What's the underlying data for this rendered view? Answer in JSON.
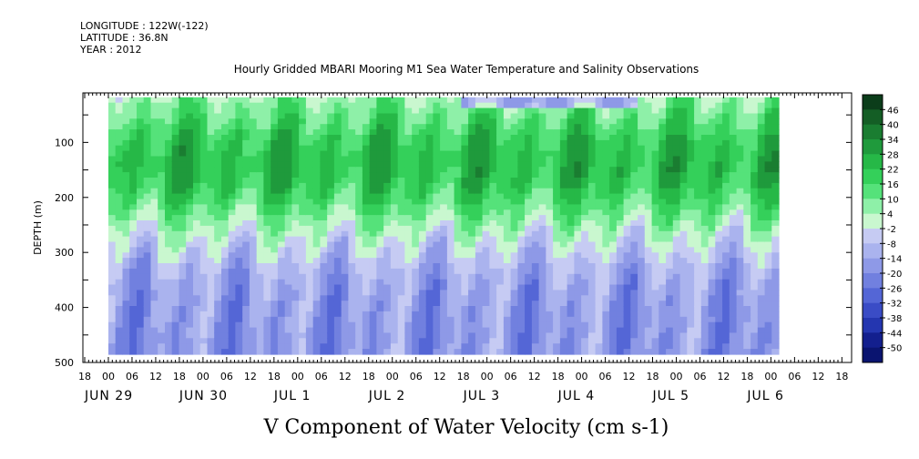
{
  "header": {
    "longitude_line": "LONGITUDE : 122W(-122)",
    "latitude_line": "LATITUDE : 36.8N",
    "year_line": "YEAR : 2012"
  },
  "chart_data": {
    "type": "heatmap",
    "title": "Hourly Gridded MBARI Mooring M1 Sea Water Temperature and Salinity Observations",
    "variable": "V Component of Water Velocity (cm s-1)",
    "ylabel": "DEPTH (m)",
    "y_axis": {
      "inverted": true,
      "ylim": [
        500,
        10
      ],
      "ticks": [
        100,
        200,
        300,
        400,
        500
      ]
    },
    "x_axis": {
      "start": "JUN 29 18:00",
      "end": "JUL 6 20:00",
      "hour_ticks": [
        "18",
        "00",
        "06",
        "12",
        "18",
        "00",
        "06",
        "12",
        "18",
        "00",
        "06",
        "12",
        "18",
        "00",
        "06",
        "12",
        "18",
        "00",
        "06",
        "12",
        "18",
        "00",
        "06",
        "12",
        "18",
        "00",
        "06",
        "12",
        "18",
        "00",
        "06",
        "12",
        "18"
      ],
      "date_labels": [
        "JUN 29",
        "JUN 30",
        "JUL 1",
        "JUL 2",
        "JUL 3",
        "JUL 4",
        "JUL 5",
        "JUL 6"
      ]
    },
    "data_depth_range": [
      18,
      485
    ],
    "data_time_start": "JUN 30 00:00",
    "colorbar": {
      "levels": [
        46,
        40,
        34,
        28,
        22,
        16,
        10,
        4,
        -2,
        -8,
        -14,
        -20,
        -26,
        -32,
        -38,
        -44,
        -50
      ],
      "colors": [
        "#0b3d1a",
        "#145e25",
        "#1a7d31",
        "#1f9a3c",
        "#26b847",
        "#34d05a",
        "#55e27a",
        "#8ef0a8",
        "#c9f7cf",
        "#c6cbf3",
        "#aab3ee",
        "#8e99e7",
        "#7180df",
        "#5466d6",
        "#3a4cc6",
        "#2436b0",
        "#131f8e",
        "#0a1470"
      ]
    },
    "pattern_summary": {
      "upper_layer": "predominantly positive (green, 4 to 28) from about 20 m to 250 m",
      "lower_layer": "predominantly negative (blue, -2 to -26) below about 300 m",
      "surface_band": "negative values near surface on JUL 3 to JUL 4"
    },
    "grid": false
  },
  "footer": {
    "variable_label": "V Component of Water Velocity (cm s-1)"
  }
}
